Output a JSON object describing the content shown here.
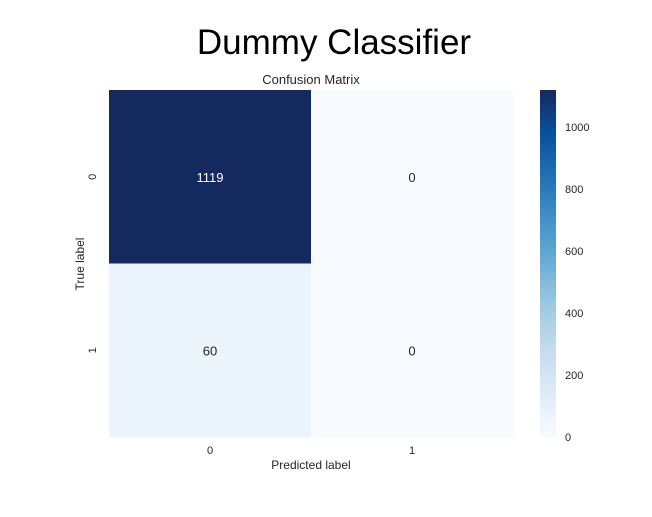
{
  "figure": {
    "suptitle": "Dummy Classifier"
  },
  "chart_data": {
    "type": "heatmap",
    "title": "Confusion Matrix",
    "xlabel": "Predicted label",
    "ylabel": "True label",
    "x_categories": [
      "0",
      "1"
    ],
    "y_categories": [
      "0",
      "1"
    ],
    "matrix": [
      [
        1119,
        0
      ],
      [
        60,
        0
      ]
    ],
    "annotations": [
      [
        "1119",
        "0"
      ],
      [
        "60",
        "0"
      ]
    ],
    "colormap": "Blues",
    "color_range": [
      0,
      1119
    ],
    "colorbar": {
      "ticks": [
        0,
        200,
        400,
        600,
        800,
        1000
      ],
      "tick_labels": [
        "0",
        "200",
        "400",
        "600",
        "800",
        "1000"
      ]
    },
    "colors": {
      "low": "#f7fbff",
      "high": "#142a5e",
      "annotation_light": "#ffffff",
      "annotation_dark": "#262626"
    }
  }
}
